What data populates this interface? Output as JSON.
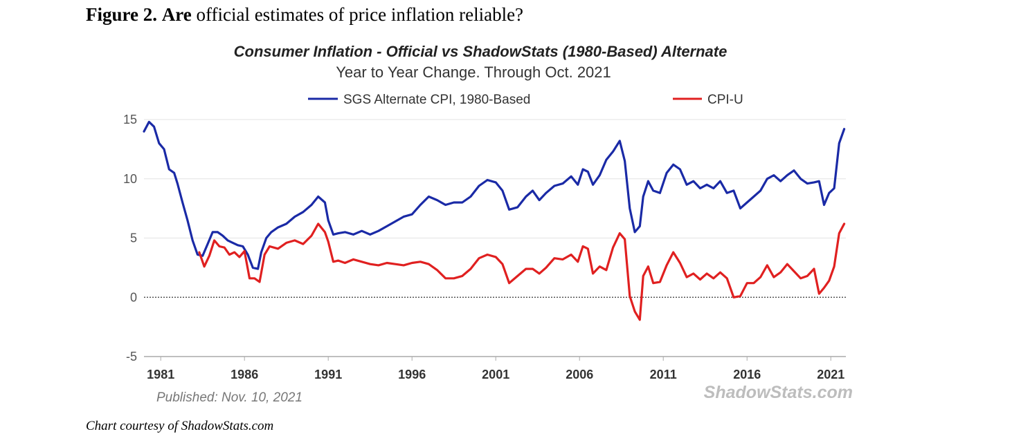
{
  "figure": {
    "label": "Figure 2.",
    "label_are": "Are",
    "question": "official estimates of price inflation reliable?",
    "credit": "Chart courtesy of ShadowStats.com"
  },
  "chart_data": {
    "type": "line",
    "title": "Consumer Inflation - Official vs ShadowStats (1980-Based) Alternate",
    "subtitle": "Year to Year Change. Through Oct. 2021",
    "xlabel": "",
    "ylabel": "",
    "ylim": [
      -5,
      15
    ],
    "xlim": [
      1980.0,
      2021.9
    ],
    "yticks": [
      "15",
      "10",
      "5",
      "0",
      "-5"
    ],
    "ytick_values": [
      15,
      10,
      5,
      0,
      -5
    ],
    "xticks": [
      "1981",
      "1986",
      "1991",
      "1996",
      "2001",
      "2006",
      "2011",
      "2016",
      "2021"
    ],
    "xtick_values": [
      1981,
      1986,
      1991,
      1996,
      2001,
      2006,
      2011,
      2016,
      2021
    ],
    "grid": "horizontal",
    "legend_position": "top",
    "zero_line": "dotted",
    "published": "Published: Nov. 10, 2021",
    "watermark": "ShadowStats.com",
    "series": [
      {
        "name": "SGS Alternate CPI, 1980-Based",
        "color": "#1a2aa6",
        "x": [
          1980.0,
          1980.3,
          1980.6,
          1980.9,
          1981.2,
          1981.5,
          1981.8,
          1982.0,
          1982.3,
          1982.6,
          1982.9,
          1983.2,
          1983.5,
          1983.8,
          1984.1,
          1984.4,
          1984.7,
          1985.0,
          1985.3,
          1985.6,
          1985.9,
          1986.2,
          1986.5,
          1986.8,
          1987.0,
          1987.3,
          1987.6,
          1988.0,
          1988.5,
          1989.0,
          1989.5,
          1990.0,
          1990.4,
          1990.8,
          1991.0,
          1991.3,
          1991.6,
          1992.0,
          1992.5,
          1993.0,
          1993.5,
          1994.0,
          1994.5,
          1995.0,
          1995.5,
          1996.0,
          1996.5,
          1997.0,
          1997.5,
          1998.0,
          1998.5,
          1999.0,
          1999.5,
          2000.0,
          2000.5,
          2001.0,
          2001.4,
          2001.8,
          2002.3,
          2002.8,
          2003.2,
          2003.6,
          2004.0,
          2004.5,
          2005.0,
          2005.5,
          2005.9,
          2006.2,
          2006.5,
          2006.8,
          2007.2,
          2007.6,
          2008.0,
          2008.4,
          2008.7,
          2009.0,
          2009.3,
          2009.6,
          2009.8,
          2010.1,
          2010.4,
          2010.8,
          2011.2,
          2011.6,
          2012.0,
          2012.4,
          2012.8,
          2013.2,
          2013.6,
          2014.0,
          2014.4,
          2014.8,
          2015.2,
          2015.6,
          2016.0,
          2016.4,
          2016.8,
          2017.2,
          2017.6,
          2018.0,
          2018.4,
          2018.8,
          2019.2,
          2019.6,
          2020.0,
          2020.3,
          2020.6,
          2020.9,
          2021.2,
          2021.5,
          2021.8
        ],
        "values": [
          14.0,
          14.8,
          14.4,
          13.0,
          12.5,
          10.8,
          10.5,
          9.6,
          8.0,
          6.5,
          4.8,
          3.6,
          3.5,
          4.5,
          5.5,
          5.5,
          5.2,
          4.8,
          4.6,
          4.4,
          4.3,
          3.6,
          2.5,
          2.4,
          3.8,
          5.0,
          5.5,
          5.9,
          6.2,
          6.8,
          7.2,
          7.8,
          8.5,
          8.0,
          6.5,
          5.3,
          5.4,
          5.5,
          5.3,
          5.6,
          5.3,
          5.6,
          6.0,
          6.4,
          6.8,
          7.0,
          7.8,
          8.5,
          8.2,
          7.8,
          8.0,
          8.0,
          8.5,
          9.4,
          9.9,
          9.7,
          9.0,
          7.4,
          7.6,
          8.5,
          9.0,
          8.2,
          8.8,
          9.4,
          9.6,
          10.2,
          9.5,
          10.8,
          10.6,
          9.5,
          10.3,
          11.6,
          12.3,
          13.2,
          11.5,
          7.5,
          5.5,
          6.0,
          8.5,
          9.8,
          9.0,
          8.8,
          10.5,
          11.2,
          10.8,
          9.5,
          9.8,
          9.2,
          9.5,
          9.2,
          9.8,
          8.8,
          9.0,
          7.5,
          8.0,
          8.5,
          9.0,
          10.0,
          10.3,
          9.8,
          10.3,
          10.7,
          10.0,
          9.6,
          9.7,
          9.8,
          7.8,
          8.8,
          9.2,
          13.0,
          14.2
        ]
      },
      {
        "name": "CPI-U",
        "color": "#e02020",
        "x": [
          1983.3,
          1983.6,
          1983.9,
          1984.2,
          1984.5,
          1984.8,
          1985.1,
          1985.4,
          1985.7,
          1986.0,
          1986.3,
          1986.6,
          1986.9,
          1987.2,
          1987.5,
          1988.0,
          1988.5,
          1989.0,
          1989.5,
          1990.0,
          1990.4,
          1990.8,
          1991.0,
          1991.3,
          1991.6,
          1992.0,
          1992.5,
          1993.0,
          1993.5,
          1994.0,
          1994.5,
          1995.0,
          1995.5,
          1996.0,
          1996.5,
          1997.0,
          1997.5,
          1998.0,
          1998.5,
          1999.0,
          1999.5,
          2000.0,
          2000.5,
          2001.0,
          2001.4,
          2001.8,
          2002.3,
          2002.8,
          2003.2,
          2003.6,
          2004.0,
          2004.5,
          2005.0,
          2005.5,
          2005.9,
          2006.2,
          2006.5,
          2006.8,
          2007.2,
          2007.6,
          2008.0,
          2008.4,
          2008.7,
          2009.0,
          2009.3,
          2009.6,
          2009.8,
          2010.1,
          2010.4,
          2010.8,
          2011.2,
          2011.6,
          2012.0,
          2012.4,
          2012.8,
          2013.2,
          2013.6,
          2014.0,
          2014.4,
          2014.8,
          2015.2,
          2015.6,
          2016.0,
          2016.4,
          2016.8,
          2017.2,
          2017.6,
          2018.0,
          2018.4,
          2018.8,
          2019.2,
          2019.6,
          2020.0,
          2020.3,
          2020.6,
          2020.9,
          2021.2,
          2021.5,
          2021.8
        ],
        "values": [
          3.8,
          2.6,
          3.5,
          4.8,
          4.3,
          4.2,
          3.6,
          3.8,
          3.4,
          3.9,
          1.6,
          1.6,
          1.3,
          3.6,
          4.3,
          4.1,
          4.6,
          4.8,
          4.5,
          5.2,
          6.2,
          5.5,
          4.7,
          3.0,
          3.1,
          2.9,
          3.2,
          3.0,
          2.8,
          2.7,
          2.9,
          2.8,
          2.7,
          2.9,
          3.0,
          2.8,
          2.3,
          1.6,
          1.6,
          1.8,
          2.4,
          3.3,
          3.6,
          3.4,
          2.8,
          1.2,
          1.8,
          2.4,
          2.4,
          2.0,
          2.5,
          3.3,
          3.2,
          3.6,
          3.0,
          4.3,
          4.1,
          2.0,
          2.6,
          2.3,
          4.2,
          5.4,
          4.9,
          0.1,
          -1.2,
          -1.9,
          1.8,
          2.6,
          1.2,
          1.3,
          2.7,
          3.8,
          2.9,
          1.7,
          2.0,
          1.5,
          2.0,
          1.6,
          2.1,
          1.6,
          0.0,
          0.1,
          1.2,
          1.2,
          1.7,
          2.7,
          1.7,
          2.1,
          2.8,
          2.2,
          1.6,
          1.8,
          2.4,
          0.3,
          0.8,
          1.4,
          2.6,
          5.4,
          6.2
        ]
      }
    ]
  }
}
